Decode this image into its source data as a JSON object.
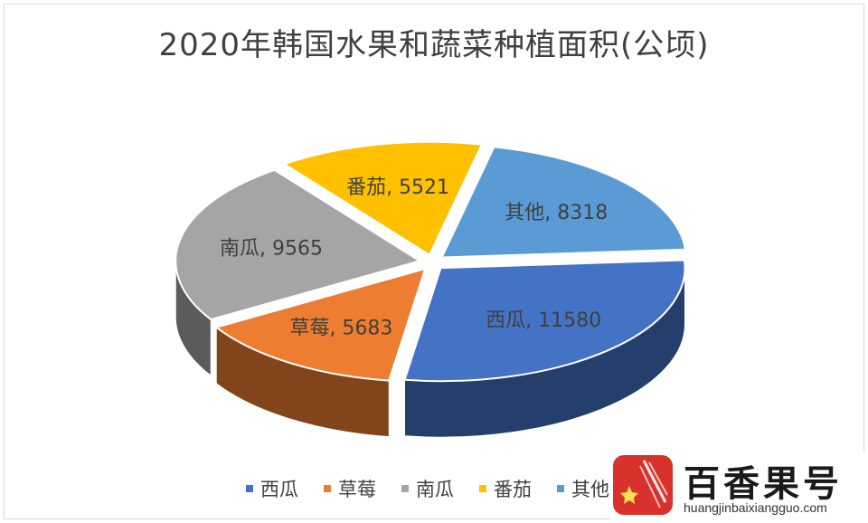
{
  "chart_data": {
    "type": "pie",
    "title": "2020年韩国水果和蔬菜种植面积(公顷)",
    "slices": [
      {
        "label": "西瓜",
        "value": 11580,
        "color": "#4472c4",
        "data_label": "西瓜, 11580"
      },
      {
        "label": "草莓",
        "value": 5683,
        "color": "#ed7d31",
        "data_label": "草莓, 5683"
      },
      {
        "label": "南瓜",
        "value": 9565,
        "color": "#a5a5a5",
        "data_label": "南瓜, 9565"
      },
      {
        "label": "番茄",
        "value": 5521,
        "color": "#ffc000",
        "data_label": "番茄, 5521"
      },
      {
        "label": "其他",
        "value": 8318,
        "color": "#5b9bd5",
        "data_label": "其他, 8318"
      }
    ],
    "legend_position": "bottom",
    "style": "3d-exploded"
  },
  "watermark": {
    "name": "百香果号",
    "url": "huangjinbaixiangguo.com"
  }
}
